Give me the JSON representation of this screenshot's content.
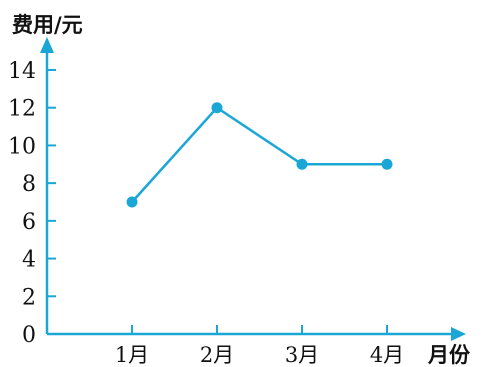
{
  "chart_data": {
    "type": "line",
    "ylabel": "费用/元",
    "xlabel": "月份",
    "categories": [
      "1月",
      "2月",
      "3月",
      "4月"
    ],
    "series": [
      {
        "values": [
          7,
          12,
          9,
          9
        ]
      }
    ],
    "ylim": [
      0,
      14
    ],
    "yticks": [
      0,
      2,
      4,
      6,
      8,
      10,
      12,
      14
    ],
    "grid": false,
    "colors": {
      "axis": "#1aa7d6",
      "line": "#1aa7d6",
      "point": "#1aa7d6"
    }
  }
}
